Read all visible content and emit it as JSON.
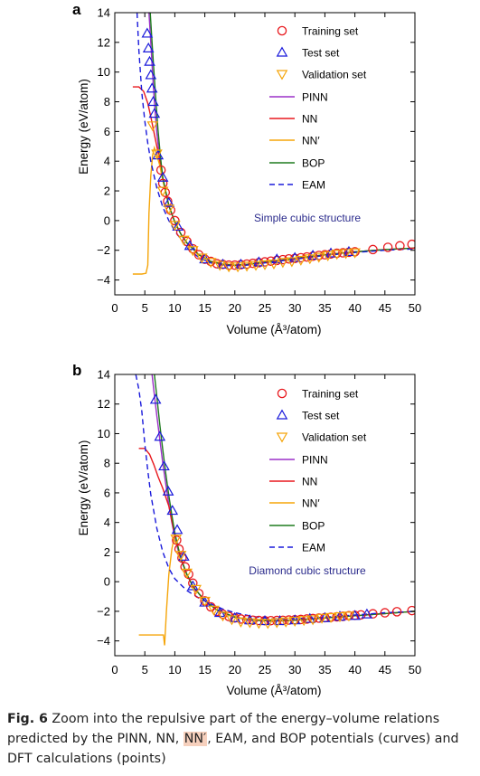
{
  "chart_data": [
    {
      "type": "line",
      "panel_label": "a",
      "annotation": "Simple cubic structure",
      "xlabel": "Volume (Å³/atom)",
      "ylabel": "Energy (eV/atom)",
      "xlim": [
        0,
        50
      ],
      "ylim": [
        -5,
        14
      ],
      "xticks": [
        "0",
        "5",
        "10",
        "15",
        "20",
        "25",
        "30",
        "35",
        "40",
        "45",
        "50"
      ],
      "yticks": [
        "−4",
        "−2",
        "0",
        "2",
        "4",
        "6",
        "8",
        "10",
        "12",
        "14"
      ],
      "legend_placement": "top-right",
      "series": [
        {
          "name": "PINN",
          "kind": "line",
          "color": "#9b30c8",
          "dash": false,
          "x": [
            5.7,
            6.0,
            6.3,
            6.6,
            7.0,
            7.5,
            8.0,
            9.0,
            10,
            11,
            12,
            14,
            16,
            18,
            20,
            22,
            25,
            30,
            35,
            40,
            45,
            50
          ],
          "y": [
            14,
            12.0,
            9.9,
            8.0,
            5.9,
            4.1,
            2.8,
            1.0,
            -0.1,
            -0.9,
            -1.5,
            -2.3,
            -2.75,
            -2.95,
            -3.0,
            -2.95,
            -2.8,
            -2.55,
            -2.3,
            -2.1,
            -1.95,
            -1.85
          ]
        },
        {
          "name": "NN",
          "kind": "line",
          "color": "#e8191e",
          "dash": false,
          "x": [
            3.0,
            4.0,
            4.8,
            5.5,
            6.0,
            6.6,
            7.0,
            7.5,
            8.0,
            9.0,
            10,
            11,
            12,
            14,
            16,
            18,
            20,
            22,
            25,
            30,
            35,
            40,
            45,
            50
          ],
          "y": [
            9.0,
            9.0,
            8.7,
            7.9,
            7.0,
            5.8,
            5.0,
            4.0,
            2.8,
            1.0,
            -0.1,
            -0.9,
            -1.5,
            -2.3,
            -2.75,
            -2.95,
            -3.0,
            -2.95,
            -2.8,
            -2.55,
            -2.3,
            -2.1,
            -1.95,
            -1.85
          ]
        },
        {
          "name": "NN′",
          "kind": "line",
          "color": "#f5a50a",
          "dash": false,
          "x": [
            3.0,
            4.5,
            5.2,
            5.5,
            5.7,
            6.0,
            6.3,
            6.6,
            7.0,
            7.5,
            8.0,
            9.0,
            10,
            11,
            12,
            14,
            16,
            18,
            20,
            22,
            25,
            30,
            35,
            40,
            45,
            50
          ],
          "y": [
            -3.6,
            -3.6,
            -3.55,
            -3.0,
            0.5,
            3.0,
            4.4,
            4.9,
            4.4,
            3.7,
            2.7,
            1.0,
            -0.1,
            -0.9,
            -1.5,
            -2.3,
            -2.75,
            -2.95,
            -3.0,
            -2.95,
            -2.8,
            -2.55,
            -2.3,
            -2.1,
            -1.95,
            -1.85
          ]
        },
        {
          "name": "BOP",
          "kind": "line",
          "color": "#1e7b1e",
          "dash": false,
          "x": [
            5.9,
            6.2,
            6.5,
            6.8,
            7.2,
            7.6,
            8.0,
            9.0,
            10,
            11,
            12,
            14,
            16,
            18,
            20,
            22,
            25,
            30,
            35,
            40,
            45,
            50
          ],
          "y": [
            14,
            12.0,
            10.1,
            8.3,
            6.1,
            4.3,
            2.9,
            1.0,
            -0.1,
            -0.9,
            -1.5,
            -2.3,
            -2.75,
            -2.95,
            -3.0,
            -2.95,
            -2.8,
            -2.55,
            -2.3,
            -2.1,
            -1.95,
            -1.85
          ]
        },
        {
          "name": "EAM",
          "kind": "line",
          "color": "#1a1adb",
          "dash": true,
          "x": [
            3.7,
            4.0,
            4.5,
            5.0,
            5.5,
            6.0,
            7.0,
            8.0,
            9.0,
            10,
            12,
            14,
            16,
            18,
            20,
            22,
            25,
            30,
            35,
            40,
            45,
            50
          ],
          "y": [
            14,
            11.5,
            8.6,
            6.7,
            5.2,
            4.0,
            2.2,
            0.9,
            0.0,
            -0.7,
            -1.8,
            -2.5,
            -2.85,
            -3.0,
            -3.05,
            -3.0,
            -2.85,
            -2.6,
            -2.35,
            -2.15,
            -2.0,
            -1.9
          ]
        },
        {
          "name": "Training set",
          "kind": "points",
          "marker": "circle",
          "color": "#e8191e",
          "x": [
            7.7,
            8.0,
            8.4,
            8.8,
            9.3,
            10,
            11,
            12,
            13,
            14,
            15,
            16,
            17,
            18,
            19,
            20,
            21,
            22,
            23,
            24,
            25,
            26,
            27,
            28,
            29,
            30,
            31,
            32,
            33,
            34,
            35,
            36,
            37,
            38,
            39,
            40,
            43,
            45.5,
            47.5,
            49.5
          ],
          "y": [
            3.4,
            2.5,
            1.9,
            1.3,
            0.7,
            0.0,
            -0.8,
            -1.4,
            -1.9,
            -2.3,
            -2.6,
            -2.75,
            -2.9,
            -2.95,
            -3.0,
            -3.0,
            -2.97,
            -2.93,
            -2.88,
            -2.83,
            -2.78,
            -2.73,
            -2.68,
            -2.63,
            -2.58,
            -2.55,
            -2.5,
            -2.45,
            -2.4,
            -2.35,
            -2.3,
            -2.25,
            -2.2,
            -2.17,
            -2.13,
            -2.1,
            -1.95,
            -1.8,
            -1.7,
            -1.6
          ]
        },
        {
          "name": "Test set",
          "kind": "points",
          "marker": "triangle-up",
          "color": "#1a1adb",
          "x": [
            5.4,
            5.6,
            5.8,
            6.0,
            6.2,
            6.4,
            6.6,
            7.2,
            8.0,
            9.0,
            10.5,
            12.5,
            15,
            18,
            21,
            24,
            27,
            30,
            33,
            36,
            39
          ],
          "y": [
            12.6,
            11.6,
            10.7,
            9.8,
            8.9,
            8.0,
            7.2,
            4.4,
            2.9,
            1.2,
            -0.4,
            -1.7,
            -2.6,
            -2.95,
            -2.95,
            -2.8,
            -2.6,
            -2.5,
            -2.35,
            -2.2,
            -2.1
          ]
        },
        {
          "name": "Validation set",
          "kind": "points",
          "marker": "triangle-down",
          "color": "#f5a50a",
          "x": [
            6.3,
            7.0,
            8.0,
            9.0,
            10,
            11.5,
            13,
            14.5,
            16,
            17.5,
            19,
            20.5,
            22,
            23.5,
            25,
            26.5,
            28,
            29.5,
            31,
            32.5,
            34,
            35.5,
            37,
            38.5,
            40
          ],
          "y": [
            6.4,
            4.5,
            2.0,
            0.8,
            -0.3,
            -1.3,
            -2.0,
            -2.5,
            -2.8,
            -3.0,
            -3.1,
            -3.1,
            -3.05,
            -3.0,
            -2.95,
            -2.9,
            -2.8,
            -2.75,
            -2.65,
            -2.55,
            -2.45,
            -2.35,
            -2.25,
            -2.2,
            -2.15
          ]
        }
      ]
    },
    {
      "type": "line",
      "panel_label": "b",
      "annotation": "Diamond cubic structure",
      "xlabel": "Volume (Å³/atom)",
      "ylabel": "Energy (eV/atom)",
      "xlim": [
        0,
        50
      ],
      "ylim": [
        -5,
        14
      ],
      "xticks": [
        "0",
        "5",
        "10",
        "15",
        "20",
        "25",
        "30",
        "35",
        "40",
        "45",
        "50"
      ],
      "yticks": [
        "−4",
        "−2",
        "0",
        "2",
        "4",
        "6",
        "8",
        "10",
        "12",
        "14"
      ],
      "legend_placement": "top-right",
      "series": [
        {
          "name": "PINN",
          "kind": "line",
          "color": "#9b30c8",
          "dash": false,
          "x": [
            6.2,
            6.6,
            7.0,
            7.5,
            8.0,
            8.5,
            9.0,
            9.5,
            10,
            10.5,
            11,
            12,
            13,
            15,
            17,
            20,
            23,
            26,
            30,
            35,
            40,
            45,
            50
          ],
          "y": [
            14,
            12.6,
            11.2,
            9.6,
            8.0,
            6.6,
            5.2,
            4.0,
            3.0,
            2.2,
            1.5,
            0.5,
            -0.3,
            -1.3,
            -1.9,
            -2.4,
            -2.6,
            -2.65,
            -2.6,
            -2.45,
            -2.3,
            -2.15,
            -2.0
          ]
        },
        {
          "name": "NN",
          "kind": "line",
          "color": "#e8191e",
          "dash": false,
          "x": [
            4.0,
            5.0,
            5.8,
            6.5,
            7.2,
            8.0,
            9.0,
            9.5,
            10,
            10.5,
            11,
            12,
            13,
            15,
            17,
            20,
            23,
            26,
            30,
            35,
            40,
            45,
            50
          ],
          "y": [
            9.0,
            9.0,
            8.6,
            7.9,
            7.1,
            6.3,
            5.1,
            4.1,
            3.2,
            2.4,
            1.6,
            0.5,
            -0.3,
            -1.3,
            -1.9,
            -2.4,
            -2.6,
            -2.65,
            -2.6,
            -2.45,
            -2.3,
            -2.15,
            -2.0
          ]
        },
        {
          "name": "NN′",
          "kind": "line",
          "color": "#f5a50a",
          "dash": false,
          "x": [
            4.0,
            7.5,
            8.1,
            8.3,
            8.6,
            9.0,
            9.5,
            10,
            10.5,
            11,
            12,
            13,
            15,
            17,
            20,
            23,
            26,
            30,
            35,
            40,
            45,
            50
          ],
          "y": [
            -3.6,
            -3.6,
            -3.6,
            -4.3,
            -2.0,
            0.5,
            2.2,
            3.2,
            2.4,
            1.6,
            0.5,
            -0.3,
            -1.3,
            -1.9,
            -2.4,
            -2.6,
            -2.65,
            -2.6,
            -2.45,
            -2.3,
            -2.15,
            -2.0
          ]
        },
        {
          "name": "BOP",
          "kind": "line",
          "color": "#1e7b1e",
          "dash": false,
          "x": [
            6.6,
            7.0,
            7.5,
            8.0,
            8.5,
            9.0,
            9.5,
            10,
            10.5,
            11,
            12,
            13,
            15,
            17,
            20,
            23,
            26,
            30,
            35,
            40,
            45,
            50
          ],
          "y": [
            14,
            12.5,
            10.6,
            8.9,
            7.3,
            5.8,
            4.5,
            3.3,
            2.4,
            1.6,
            0.5,
            -0.3,
            -1.3,
            -1.9,
            -2.4,
            -2.6,
            -2.65,
            -2.6,
            -2.45,
            -2.3,
            -2.15,
            -2.0
          ]
        },
        {
          "name": "EAM",
          "kind": "line",
          "color": "#1a1adb",
          "dash": true,
          "x": [
            3.5,
            4.0,
            4.5,
            5.0,
            5.5,
            6.0,
            7.0,
            8.0,
            9.0,
            10,
            12,
            14,
            16,
            18,
            20,
            23,
            26,
            30,
            35,
            40,
            45,
            50
          ],
          "y": [
            14,
            13.0,
            11.5,
            9.3,
            7.5,
            5.9,
            3.6,
            2.0,
            0.9,
            0.2,
            -0.6,
            -1.1,
            -1.5,
            -1.85,
            -2.1,
            -2.35,
            -2.5,
            -2.5,
            -2.4,
            -2.25,
            -2.1,
            -2.0
          ]
        },
        {
          "name": "Training set",
          "kind": "points",
          "marker": "circle",
          "color": "#e8191e",
          "x": [
            10.3,
            10.7,
            11.2,
            11.7,
            12.3,
            13,
            14,
            15,
            16,
            17,
            18,
            19,
            20,
            21,
            22,
            23,
            24,
            25,
            26,
            27,
            28,
            29,
            30,
            31,
            32,
            33,
            34,
            35,
            36,
            37,
            38,
            39,
            40,
            41,
            43,
            45,
            47,
            49.5
          ],
          "y": [
            2.8,
            2.2,
            1.6,
            1.0,
            0.5,
            -0.1,
            -0.8,
            -1.3,
            -1.7,
            -2.0,
            -2.2,
            -2.35,
            -2.45,
            -2.52,
            -2.57,
            -2.6,
            -2.62,
            -2.63,
            -2.63,
            -2.62,
            -2.61,
            -2.59,
            -2.57,
            -2.55,
            -2.52,
            -2.49,
            -2.46,
            -2.43,
            -2.4,
            -2.37,
            -2.34,
            -2.3,
            -2.27,
            -2.24,
            -2.17,
            -2.1,
            -2.03,
            -1.95
          ]
        },
        {
          "name": "Test set",
          "kind": "points",
          "marker": "triangle-up",
          "color": "#1a1adb",
          "x": [
            6.8,
            7.5,
            8.2,
            8.9,
            9.6,
            10.4,
            11.5,
            13,
            15,
            17.5,
            20,
            22.5,
            25,
            27.5,
            30,
            32.5,
            35,
            37.5,
            40,
            42
          ],
          "y": [
            12.3,
            9.8,
            7.8,
            6.1,
            4.8,
            3.5,
            1.7,
            -0.3,
            -1.4,
            -2.1,
            -2.45,
            -2.6,
            -2.65,
            -2.65,
            -2.6,
            -2.5,
            -2.45,
            -2.35,
            -2.3,
            -2.2
          ]
        },
        {
          "name": "Validation set",
          "kind": "points",
          "marker": "triangle-down",
          "color": "#f5a50a",
          "x": [
            10.2,
            11.0,
            12.0,
            13.5,
            15,
            16.5,
            18,
            19.5,
            21,
            22.5,
            24,
            25.5,
            27,
            28.5,
            30,
            31.5,
            33,
            34.5,
            36,
            37.5,
            39
          ],
          "y": [
            2.9,
            1.8,
            0.6,
            -0.5,
            -1.3,
            -1.9,
            -2.3,
            -2.55,
            -2.7,
            -2.75,
            -2.8,
            -2.8,
            -2.75,
            -2.7,
            -2.65,
            -2.6,
            -2.55,
            -2.45,
            -2.4,
            -2.35,
            -2.3
          ]
        }
      ]
    }
  ],
  "caption": {
    "label": "Fig. 6",
    "text_before": " Zoom into the repulsive part of the energy–volume relations predicted by the PINN, NN, ",
    "highlight": "NN′",
    "text_after": ", EAM, and BOP potentials (curves) and DFT calculations (points)"
  }
}
